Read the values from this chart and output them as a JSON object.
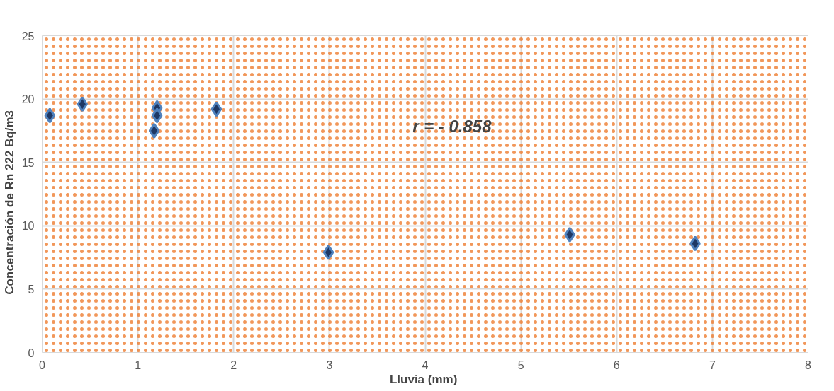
{
  "chart_data": {
    "type": "scatter",
    "xlabel": "Lluvia  (mm)",
    "ylabel": "Concentración de Rn 222      Bq/m3",
    "x": [
      0.08,
      0.42,
      1.2,
      1.2,
      1.17,
      1.82,
      2.99,
      5.51,
      6.82
    ],
    "series": [
      {
        "color": "#1f3864",
        "values": [
          18.7,
          19.6,
          19.3,
          18.7,
          17.5,
          19.2,
          7.9,
          9.3,
          8.6
        ]
      }
    ],
    "xlim": [
      0,
      8
    ],
    "xticks": [
      0,
      1,
      2,
      3,
      4,
      5,
      6,
      7,
      8
    ],
    "ylim": [
      0,
      25
    ],
    "yticks": [
      0,
      5,
      10,
      15,
      20,
      25
    ],
    "grid": true,
    "marker": "diamond",
    "annotations": [
      "r = - 0.858"
    ]
  }
}
